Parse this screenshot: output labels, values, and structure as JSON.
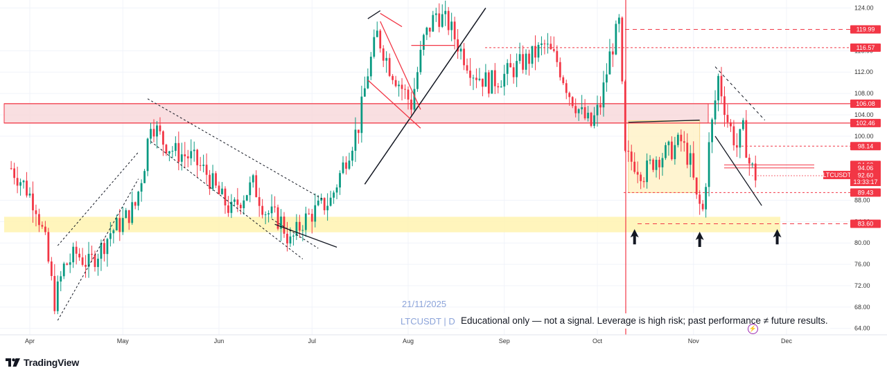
{
  "chart_data": {
    "type": "candlestick",
    "symbol": "LTCUSDT",
    "timeframe": "D",
    "watermark_symbol": "LTCUSDT | D",
    "watermark_date": "21/11/2025",
    "disclaimer": "Educational only — not a signal. Leverage is high risk; past performance ≠ future results.",
    "brand": "TradingView",
    "y_ticks": [
      "64.00",
      "68.00",
      "72.00",
      "76.00",
      "80.00",
      "84.00",
      "88.00",
      "100.00",
      "104.00",
      "108.00",
      "112.00",
      "116.00",
      "124.00"
    ],
    "y_range": [
      62.8,
      125.5
    ],
    "x_labels": [
      "Apr",
      "May",
      "Jun",
      "Jul",
      "Aug",
      "Sep",
      "Oct",
      "Nov",
      "Dec"
    ],
    "x_dates": [
      "2025-04-01",
      "2025-05-01",
      "2025-06-01",
      "2025-07-01",
      "2025-08-01",
      "2025-09-01",
      "2025-10-01",
      "2025-11-01",
      "2025-12-01"
    ],
    "price_tags": [
      {
        "label": "119.99",
        "value": 119.99
      },
      {
        "label": "116.57",
        "value": 116.57
      },
      {
        "label": "106.08",
        "value": 106.08
      },
      {
        "label": "102.46",
        "value": 102.46
      },
      {
        "label": "98.14",
        "value": 98.14
      },
      {
        "label": "94.62",
        "value": 94.62
      },
      {
        "label": "94.06",
        "value": 94.06
      },
      {
        "label": "89.43",
        "value": 89.43
      },
      {
        "label": "83.60",
        "value": 83.6
      }
    ],
    "current": {
      "symbol": "LTCUSDT",
      "price": "92.60",
      "price_value": 92.6,
      "countdown": "13:33:17"
    },
    "zones": [
      {
        "name": "resistance-zone",
        "from": 102.46,
        "to": 106.08
      },
      {
        "name": "support-zone",
        "from": 82.0,
        "to": 84.9
      },
      {
        "name": "consolidation-box",
        "from": 89.43,
        "to": 102.9,
        "x_from": "2025-10-11",
        "x_to": "2025-11-03"
      }
    ],
    "close_anchors": [
      [
        "2025-03-26",
        94.0
      ],
      [
        "2025-03-30",
        91.0
      ],
      [
        "2025-04-03",
        87.0
      ],
      [
        "2025-04-06",
        80.0
      ],
      [
        "2025-04-09",
        69.0
      ],
      [
        "2025-04-12",
        75.5
      ],
      [
        "2025-04-16",
        78.0
      ],
      [
        "2025-04-20",
        76.0
      ],
      [
        "2025-04-24",
        79.0
      ],
      [
        "2025-04-27",
        82.0
      ],
      [
        "2025-05-01",
        84.0
      ],
      [
        "2025-05-05",
        87.0
      ],
      [
        "2025-05-08",
        95.0
      ],
      [
        "2025-05-10",
        103.0
      ],
      [
        "2025-05-14",
        99.0
      ],
      [
        "2025-05-18",
        97.0
      ],
      [
        "2025-05-23",
        96.0
      ],
      [
        "2025-05-28",
        93.0
      ],
      [
        "2025-06-01",
        89.0
      ],
      [
        "2025-06-05",
        86.0
      ],
      [
        "2025-06-09",
        89.0
      ],
      [
        "2025-06-12",
        91.0
      ],
      [
        "2025-06-16",
        86.0
      ],
      [
        "2025-06-21",
        84.0
      ],
      [
        "2025-06-24",
        80.0
      ],
      [
        "2025-06-28",
        84.0
      ],
      [
        "2025-07-02",
        86.0
      ],
      [
        "2025-07-07",
        88.0
      ],
      [
        "2025-07-12",
        96.0
      ],
      [
        "2025-07-16",
        102.0
      ],
      [
        "2025-07-19",
        112.0
      ],
      [
        "2025-07-22",
        119.0
      ],
      [
        "2025-07-26",
        113.0
      ],
      [
        "2025-07-30",
        109.0
      ],
      [
        "2025-08-02",
        106.0
      ],
      [
        "2025-08-06",
        118.0
      ],
      [
        "2025-08-10",
        123.0
      ],
      [
        "2025-08-14",
        121.0
      ],
      [
        "2025-08-18",
        116.0
      ],
      [
        "2025-08-22",
        112.0
      ],
      [
        "2025-08-27",
        110.0
      ],
      [
        "2025-08-31",
        111.0
      ],
      [
        "2025-09-05",
        113.0
      ],
      [
        "2025-09-10",
        115.0
      ],
      [
        "2025-09-14",
        117.0
      ],
      [
        "2025-09-18",
        114.0
      ],
      [
        "2025-09-22",
        108.0
      ],
      [
        "2025-09-26",
        104.0
      ],
      [
        "2025-09-29",
        102.0
      ],
      [
        "2025-10-02",
        106.0
      ],
      [
        "2025-10-05",
        115.0
      ],
      [
        "2025-10-08",
        121.0
      ],
      [
        "2025-10-10",
        96.0
      ],
      [
        "2025-10-13",
        95.0
      ],
      [
        "2025-10-16",
        93.0
      ],
      [
        "2025-10-20",
        96.0
      ],
      [
        "2025-10-24",
        97.0
      ],
      [
        "2025-10-28",
        99.0
      ],
      [
        "2025-10-31",
        95.0
      ],
      [
        "2025-11-02",
        88.0
      ],
      [
        "2025-11-04",
        86.0
      ],
      [
        "2025-11-06",
        98.0
      ],
      [
        "2025-11-09",
        111.0
      ],
      [
        "2025-11-12",
        103.0
      ],
      [
        "2025-11-15",
        98.0
      ],
      [
        "2025-11-17",
        101.0
      ],
      [
        "2025-11-19",
        95.0
      ],
      [
        "2025-11-21",
        92.6
      ]
    ],
    "arrows": [
      {
        "name": "up-arrow-1",
        "date": "2025-10-13",
        "value": 81.3
      },
      {
        "name": "up-arrow-2",
        "date": "2025-11-03",
        "value": 80.8
      },
      {
        "name": "up-arrow-3",
        "date": "2025-11-28",
        "value": 81.3
      }
    ],
    "colors": {
      "up": "#089981",
      "down": "#f23645",
      "tag": "#f23645",
      "zone": "#f5c6cc",
      "support": "#fff3b0",
      "box": "#fff4c2"
    }
  }
}
